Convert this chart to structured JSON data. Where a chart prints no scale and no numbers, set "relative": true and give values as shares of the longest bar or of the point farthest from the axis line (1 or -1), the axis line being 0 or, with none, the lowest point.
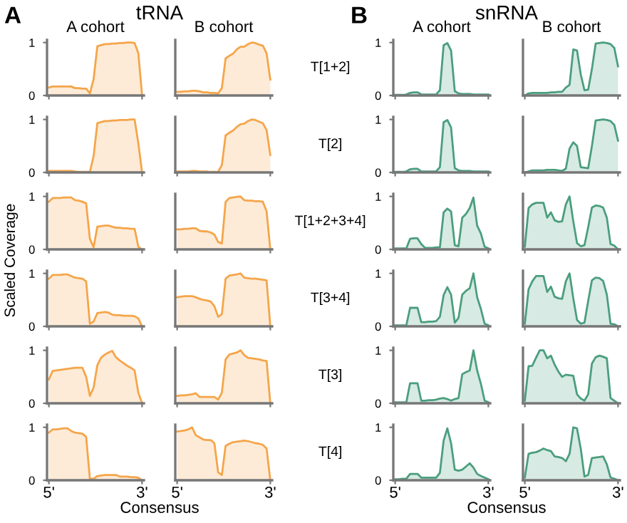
{
  "chart_data": [
    {
      "type": "area",
      "title": "A cohort",
      "annotations": [
        "A",
        "tRNA"
      ],
      "tick_labels": "y",
      "categories": [
        null,
        null,
        null,
        null,
        null,
        null,
        null,
        null,
        null,
        null,
        null,
        null,
        null,
        null,
        null,
        null,
        null,
        null,
        null,
        null,
        null,
        null,
        null,
        null,
        null,
        null
      ],
      "ylim": [
        0,
        1.05
      ],
      "yticks": [
        0,
        1
      ],
      "series": [
        {
          "color": "#f5a54a",
          "values": [
            0.15,
            0.17,
            0.17,
            0.17,
            0.17,
            0.17,
            0.17,
            0.14,
            0.14,
            0.13,
            0.13,
            0.04,
            0.31,
            0.93,
            0.95,
            0.97,
            0.97,
            0.98,
            0.98,
            0.99,
            0.99,
            1.0,
            1.0,
            0.99,
            0.8,
            0.0
          ]
        }
      ]
    },
    {
      "type": "area",
      "tick_labels": "y",
      "categories": [
        null,
        null,
        null,
        null,
        null,
        null,
        null,
        null,
        null,
        null,
        null,
        null,
        null,
        null,
        null,
        null,
        null,
        null,
        null,
        null,
        null,
        null,
        null,
        null,
        null,
        null
      ],
      "ylim": [
        0,
        1.05
      ],
      "yticks": [
        0,
        1
      ],
      "series": [
        {
          "color": "#f5a54a",
          "values": [
            0.03,
            0.03,
            0.03,
            0.03,
            0.03,
            0.03,
            0.03,
            0.02,
            0.01,
            0.01,
            0.01,
            0.01,
            0.31,
            0.93,
            0.95,
            0.97,
            0.97,
            0.98,
            0.98,
            0.99,
            0.99,
            0.99,
            1.0,
            1.0,
            0.55,
            0.0
          ]
        }
      ]
    },
    {
      "type": "area",
      "ylabel": "Scaled Coverage",
      "tick_labels": "y",
      "categories": [
        null,
        null,
        null,
        null,
        null,
        null,
        null,
        null,
        null,
        null,
        null,
        null,
        null,
        null,
        null,
        null,
        null,
        null,
        null,
        null,
        null,
        null,
        null,
        null,
        null,
        null
      ],
      "ylim": [
        0,
        1.05
      ],
      "yticks": [
        0,
        1
      ],
      "series": [
        {
          "color": "#f5a54a",
          "values": [
            0.9,
            0.97,
            0.97,
            0.97,
            0.98,
            0.98,
            0.98,
            0.93,
            0.92,
            0.9,
            0.87,
            0.2,
            0.04,
            0.43,
            0.44,
            0.45,
            0.45,
            0.43,
            0.41,
            0.41,
            0.4,
            0.4,
            0.39,
            0.39,
            0.05,
            0.0
          ]
        }
      ]
    },
    {
      "type": "area",
      "tick_labels": "y",
      "categories": [
        null,
        null,
        null,
        null,
        null,
        null,
        null,
        null,
        null,
        null,
        null,
        null,
        null,
        null,
        null,
        null,
        null,
        null,
        null,
        null,
        null,
        null,
        null,
        null,
        null,
        null
      ],
      "ylim": [
        0,
        1.05
      ],
      "yticks": [
        0,
        1
      ],
      "series": [
        {
          "color": "#f5a54a",
          "values": [
            0.9,
            0.97,
            0.97,
            0.97,
            0.98,
            0.98,
            0.95,
            0.92,
            0.91,
            0.9,
            0.85,
            0.05,
            0.09,
            0.25,
            0.26,
            0.27,
            0.26,
            0.22,
            0.21,
            0.21,
            0.2,
            0.2,
            0.2,
            0.19,
            0.15,
            0.0
          ]
        }
      ]
    },
    {
      "type": "area",
      "tick_labels": "y",
      "categories": [
        null,
        null,
        null,
        null,
        null,
        null,
        null,
        null,
        null,
        null,
        null,
        null,
        null,
        null,
        null,
        null,
        null,
        null,
        null,
        null,
        null,
        null,
        null,
        null,
        null,
        null
      ],
      "ylim": [
        0,
        1.05
      ],
      "yticks": [
        0,
        1
      ],
      "series": [
        {
          "color": "#f5a54a",
          "values": [
            0.45,
            0.61,
            0.62,
            0.63,
            0.64,
            0.65,
            0.66,
            0.67,
            0.67,
            0.67,
            0.5,
            0.14,
            0.3,
            0.72,
            0.86,
            0.92,
            0.96,
            0.99,
            0.87,
            0.81,
            0.76,
            0.71,
            0.67,
            0.62,
            0.2,
            0.0
          ]
        }
      ]
    },
    {
      "type": "area",
      "xlabel": "Consensus",
      "categories": [
        "5'",
        null,
        null,
        null,
        null,
        null,
        null,
        null,
        null,
        null,
        null,
        null,
        null,
        null,
        null,
        null,
        null,
        null,
        null,
        null,
        null,
        null,
        null,
        null,
        null,
        "3'"
      ],
      "ylim": [
        0,
        1.05
      ],
      "yticks": [
        0,
        1
      ],
      "series": [
        {
          "color": "#f5a54a",
          "values": [
            0.9,
            0.96,
            0.96,
            0.97,
            0.98,
            0.98,
            0.93,
            0.9,
            0.89,
            0.88,
            0.82,
            0.03,
            0.03,
            0.08,
            0.09,
            0.1,
            0.1,
            0.1,
            0.1,
            0.07,
            0.07,
            0.07,
            0.06,
            0.06,
            0.05,
            0.0
          ]
        }
      ]
    },
    {
      "type": "area",
      "title": "B cohort",
      "annotations": [
        "T[1+2]"
      ],
      "relative": true,
      "tick_labels": false,
      "categories": [
        null,
        null,
        null,
        null,
        null,
        null,
        null,
        null,
        null,
        null,
        null,
        null,
        null,
        null,
        null,
        null,
        null,
        null,
        null,
        null,
        null,
        null,
        null,
        null,
        null,
        null
      ],
      "series": [
        {
          "color": "#f5a54a",
          "values": [
            0.07,
            0.07,
            0.08,
            0.08,
            0.09,
            0.09,
            0.08,
            0.06,
            0.06,
            0.05,
            0.05,
            0.04,
            0.14,
            0.7,
            0.75,
            0.79,
            0.87,
            0.92,
            0.92,
            0.97,
            1.0,
            0.99,
            0.96,
            0.94,
            0.8,
            0.3
          ]
        }
      ]
    },
    {
      "type": "area",
      "annotations": [
        "T[2]"
      ],
      "relative": true,
      "tick_labels": false,
      "categories": [
        null,
        null,
        null,
        null,
        null,
        null,
        null,
        null,
        null,
        null,
        null,
        null,
        null,
        null,
        null,
        null,
        null,
        null,
        null,
        null,
        null,
        null,
        null,
        null,
        null,
        null
      ],
      "series": [
        {
          "color": "#f5a54a",
          "values": [
            0.02,
            0.02,
            0.02,
            0.02,
            0.03,
            0.03,
            0.02,
            0.02,
            0.02,
            0.01,
            0.01,
            0.01,
            0.14,
            0.7,
            0.75,
            0.79,
            0.86,
            0.91,
            0.92,
            0.97,
            1.0,
            0.99,
            0.96,
            0.93,
            0.8,
            0.33
          ]
        }
      ]
    },
    {
      "type": "area",
      "annotations": [
        "T[1+2+3+4]"
      ],
      "relative": true,
      "tick_labels": false,
      "categories": [
        null,
        null,
        null,
        null,
        null,
        null,
        null,
        null,
        null,
        null,
        null,
        null,
        null,
        null,
        null,
        null,
        null,
        null,
        null,
        null,
        null,
        null,
        null,
        null,
        null,
        null
      ],
      "series": [
        {
          "color": "#f5a54a",
          "values": [
            0.38,
            0.38,
            0.39,
            0.39,
            0.4,
            0.4,
            0.35,
            0.34,
            0.34,
            0.32,
            0.28,
            0.14,
            0.11,
            0.9,
            0.97,
            0.98,
            0.99,
            1.0,
            0.93,
            0.92,
            0.92,
            0.91,
            0.91,
            0.9,
            0.72,
            0.0
          ]
        }
      ]
    },
    {
      "type": "area",
      "annotations": [
        "T[3+4]"
      ],
      "relative": true,
      "tick_labels": false,
      "categories": [
        null,
        null,
        null,
        null,
        null,
        null,
        null,
        null,
        null,
        null,
        null,
        null,
        null,
        null,
        null,
        null,
        null,
        null,
        null,
        null,
        null,
        null,
        null,
        null,
        null,
        null
      ],
      "series": [
        {
          "color": "#f5a54a",
          "values": [
            0.55,
            0.56,
            0.57,
            0.57,
            0.57,
            0.55,
            0.52,
            0.5,
            0.49,
            0.47,
            0.38,
            0.18,
            0.23,
            0.9,
            0.96,
            0.97,
            0.98,
            1.0,
            0.92,
            0.91,
            0.9,
            0.9,
            0.89,
            0.88,
            0.87,
            0.0
          ]
        }
      ]
    },
    {
      "type": "area",
      "annotations": [
        "T[3]"
      ],
      "relative": true,
      "tick_labels": false,
      "categories": [
        null,
        null,
        null,
        null,
        null,
        null,
        null,
        null,
        null,
        null,
        null,
        null,
        null,
        null,
        null,
        null,
        null,
        null,
        null,
        null,
        null,
        null,
        null,
        null,
        null,
        null
      ],
      "series": [
        {
          "color": "#f5a54a",
          "values": [
            0.14,
            0.15,
            0.15,
            0.16,
            0.17,
            0.19,
            0.12,
            0.12,
            0.12,
            0.12,
            0.12,
            0.07,
            0.2,
            0.83,
            0.92,
            0.94,
            0.96,
            1.0,
            0.91,
            0.86,
            0.85,
            0.84,
            0.83,
            0.81,
            0.8,
            0.0
          ]
        }
      ]
    },
    {
      "type": "area",
      "annotations": [
        "T[4]"
      ],
      "relative": true,
      "tick_labels": "x",
      "categories": [
        "5'",
        null,
        null,
        null,
        null,
        null,
        null,
        null,
        null,
        null,
        null,
        null,
        null,
        null,
        null,
        null,
        null,
        null,
        null,
        null,
        null,
        null,
        null,
        null,
        null,
        "3'"
      ],
      "series": [
        {
          "color": "#f5a54a",
          "values": [
            0.92,
            0.93,
            0.94,
            0.96,
            1.0,
            0.85,
            0.81,
            0.77,
            0.76,
            0.76,
            0.7,
            0.15,
            0.1,
            0.65,
            0.69,
            0.72,
            0.73,
            0.74,
            0.75,
            0.74,
            0.72,
            0.7,
            0.69,
            0.67,
            0.6,
            0.0
          ]
        }
      ]
    },
    {
      "type": "area",
      "title": "A cohort",
      "annotations": [
        "B",
        "snRNA"
      ],
      "tick_labels": "y",
      "categories": [
        null,
        null,
        null,
        null,
        null,
        null,
        null,
        null,
        null,
        null,
        null,
        null,
        null,
        null,
        null,
        null,
        null,
        null,
        null,
        null,
        null,
        null,
        null,
        null,
        null,
        null
      ],
      "ylim": [
        0,
        1.05
      ],
      "yticks": [
        0,
        1
      ],
      "series": [
        {
          "color": "#4a9e7e",
          "values": [
            0.01,
            0.01,
            0.01,
            0.02,
            0.05,
            0.06,
            0.06,
            0.02,
            0.02,
            0.02,
            0.02,
            0.02,
            0.1,
            0.95,
            0.99,
            0.85,
            0.08,
            0.04,
            0.03,
            0.03,
            0.03,
            0.02,
            0.02,
            0.02,
            0.02,
            0.02
          ]
        }
      ]
    },
    {
      "type": "area",
      "tick_labels": "y",
      "categories": [
        null,
        null,
        null,
        null,
        null,
        null,
        null,
        null,
        null,
        null,
        null,
        null,
        null,
        null,
        null,
        null,
        null,
        null,
        null,
        null,
        null,
        null,
        null,
        null,
        null,
        null
      ],
      "ylim": [
        0,
        1.05
      ],
      "yticks": [
        0,
        1
      ],
      "series": [
        {
          "color": "#4a9e7e",
          "values": [
            0.01,
            0.01,
            0.01,
            0.02,
            0.06,
            0.07,
            0.07,
            0.02,
            0.02,
            0.02,
            0.02,
            0.02,
            0.1,
            0.95,
            0.99,
            0.85,
            0.08,
            0.04,
            0.03,
            0.03,
            0.03,
            0.02,
            0.02,
            0.02,
            0.02,
            0.02
          ]
        }
      ]
    },
    {
      "type": "area",
      "tick_labels": "y",
      "categories": [
        null,
        null,
        null,
        null,
        null,
        null,
        null,
        null,
        null,
        null,
        null,
        null,
        null,
        null,
        null,
        null,
        null,
        null,
        null,
        null,
        null,
        null,
        null,
        null,
        null,
        null
      ],
      "ylim": [
        0,
        1.05
      ],
      "yticks": [
        0,
        1
      ],
      "series": [
        {
          "color": "#4a9e7e",
          "values": [
            0.02,
            0.02,
            0.02,
            0.02,
            0.2,
            0.21,
            0.21,
            0.1,
            0.03,
            0.03,
            0.03,
            0.04,
            0.04,
            0.7,
            0.77,
            0.72,
            0.08,
            0.06,
            0.6,
            0.67,
            0.78,
            0.98,
            0.45,
            0.3,
            0.05,
            0.02
          ]
        }
      ]
    },
    {
      "type": "area",
      "tick_labels": "y",
      "categories": [
        null,
        null,
        null,
        null,
        null,
        null,
        null,
        null,
        null,
        null,
        null,
        null,
        null,
        null,
        null,
        null,
        null,
        null,
        null,
        null,
        null,
        null,
        null,
        null,
        null,
        null
      ],
      "ylim": [
        0,
        1.05
      ],
      "yticks": [
        0,
        1
      ],
      "series": [
        {
          "color": "#4a9e7e",
          "values": [
            0.02,
            0.02,
            0.02,
            0.02,
            0.35,
            0.35,
            0.35,
            0.08,
            0.08,
            0.09,
            0.09,
            0.1,
            0.18,
            0.59,
            0.74,
            0.6,
            0.07,
            0.16,
            0.6,
            0.67,
            0.72,
            1.0,
            0.55,
            0.33,
            0.05,
            0.02
          ]
        }
      ]
    },
    {
      "type": "area",
      "tick_labels": "y",
      "categories": [
        null,
        null,
        null,
        null,
        null,
        null,
        null,
        null,
        null,
        null,
        null,
        null,
        null,
        null,
        null,
        null,
        null,
        null,
        null,
        null,
        null,
        null,
        null,
        null,
        null,
        null
      ],
      "ylim": [
        0,
        1.05
      ],
      "yticks": [
        0,
        1
      ],
      "series": [
        {
          "color": "#4a9e7e",
          "values": [
            0.02,
            0.02,
            0.02,
            0.02,
            0.38,
            0.38,
            0.38,
            0.05,
            0.05,
            0.06,
            0.06,
            0.07,
            0.09,
            0.1,
            0.08,
            0.05,
            0.08,
            0.1,
            0.55,
            0.59,
            0.62,
            1.0,
            0.62,
            0.37,
            0.05,
            0.02
          ]
        }
      ]
    },
    {
      "type": "area",
      "xlabel": "Consensus",
      "categories": [
        "5'",
        null,
        null,
        null,
        null,
        null,
        null,
        null,
        null,
        null,
        null,
        null,
        null,
        null,
        null,
        null,
        null,
        null,
        null,
        null,
        null,
        null,
        null,
        null,
        null,
        "3'"
      ],
      "ylim": [
        0,
        1.05
      ],
      "yticks": [
        0,
        1
      ],
      "series": [
        {
          "color": "#4a9e7e",
          "values": [
            0.02,
            0.02,
            0.03,
            0.03,
            0.12,
            0.12,
            0.12,
            0.05,
            0.05,
            0.05,
            0.05,
            0.05,
            0.14,
            0.75,
            0.98,
            0.7,
            0.2,
            0.18,
            0.2,
            0.26,
            0.32,
            0.24,
            0.12,
            0.08,
            0.05,
            0.02
          ]
        }
      ]
    },
    {
      "type": "area",
      "title": "B cohort",
      "relative": true,
      "tick_labels": false,
      "categories": [
        null,
        null,
        null,
        null,
        null,
        null,
        null,
        null,
        null,
        null,
        null,
        null,
        null,
        null,
        null,
        null,
        null,
        null,
        null,
        null,
        null,
        null,
        null,
        null,
        null,
        null
      ],
      "series": [
        {
          "color": "#4a9e7e",
          "values": [
            0.0,
            0.04,
            0.05,
            0.05,
            0.05,
            0.05,
            0.05,
            0.06,
            0.06,
            0.07,
            0.07,
            0.15,
            0.2,
            0.87,
            0.85,
            0.4,
            0.1,
            0.11,
            0.5,
            0.98,
            0.99,
            1.0,
            0.99,
            0.97,
            0.9,
            0.55
          ]
        }
      ]
    },
    {
      "type": "area",
      "relative": true,
      "tick_labels": false,
      "categories": [
        null,
        null,
        null,
        null,
        null,
        null,
        null,
        null,
        null,
        null,
        null,
        null,
        null,
        null,
        null,
        null,
        null,
        null,
        null,
        null,
        null,
        null,
        null,
        null,
        null,
        null
      ],
      "series": [
        {
          "color": "#4a9e7e",
          "values": [
            0.0,
            0.02,
            0.04,
            0.04,
            0.04,
            0.04,
            0.05,
            0.05,
            0.05,
            0.04,
            0.03,
            0.07,
            0.45,
            0.57,
            0.5,
            0.1,
            0.09,
            0.08,
            0.5,
            0.98,
            0.99,
            1.0,
            0.99,
            0.97,
            0.9,
            0.6
          ]
        }
      ]
    },
    {
      "type": "area",
      "relative": true,
      "tick_labels": false,
      "categories": [
        null,
        null,
        null,
        null,
        null,
        null,
        null,
        null,
        null,
        null,
        null,
        null,
        null,
        null,
        null,
        null,
        null,
        null,
        null,
        null,
        null,
        null,
        null,
        null,
        null,
        null
      ],
      "series": [
        {
          "color": "#4a9e7e",
          "values": [
            0.05,
            0.78,
            0.85,
            0.88,
            0.88,
            0.88,
            0.6,
            0.7,
            0.55,
            0.52,
            0.53,
            0.85,
            1.0,
            0.53,
            0.12,
            0.06,
            0.08,
            0.42,
            0.79,
            0.83,
            0.82,
            0.79,
            0.6,
            0.1,
            0.07,
            0.0
          ]
        }
      ]
    },
    {
      "type": "area",
      "relative": true,
      "tick_labels": false,
      "categories": [
        null,
        null,
        null,
        null,
        null,
        null,
        null,
        null,
        null,
        null,
        null,
        null,
        null,
        null,
        null,
        null,
        null,
        null,
        null,
        null,
        null,
        null,
        null,
        null,
        null,
        null
      ],
      "series": [
        {
          "color": "#4a9e7e",
          "values": [
            0.05,
            0.7,
            0.85,
            0.95,
            0.95,
            0.95,
            0.65,
            0.75,
            0.56,
            0.53,
            0.52,
            0.85,
            1.0,
            0.53,
            0.12,
            0.05,
            0.07,
            0.48,
            0.87,
            0.92,
            0.91,
            0.86,
            0.6,
            0.05,
            0.04,
            0.0
          ]
        }
      ]
    },
    {
      "type": "area",
      "relative": true,
      "tick_labels": false,
      "categories": [
        null,
        null,
        null,
        null,
        null,
        null,
        null,
        null,
        null,
        null,
        null,
        null,
        null,
        null,
        null,
        null,
        null,
        null,
        null,
        null,
        null,
        null,
        null,
        null,
        null,
        null
      ],
      "series": [
        {
          "color": "#4a9e7e",
          "values": [
            0.05,
            0.7,
            0.71,
            0.86,
            1.0,
            1.0,
            0.85,
            0.9,
            0.73,
            0.6,
            0.5,
            0.54,
            0.53,
            0.52,
            0.17,
            0.09,
            0.05,
            0.17,
            0.75,
            0.87,
            0.9,
            0.88,
            0.85,
            0.1,
            0.05,
            0.0
          ]
        }
      ]
    },
    {
      "type": "area",
      "relative": true,
      "tick_labels": "x",
      "categories": [
        "5'",
        null,
        null,
        null,
        null,
        null,
        null,
        null,
        null,
        null,
        null,
        null,
        null,
        null,
        null,
        null,
        null,
        null,
        null,
        null,
        null,
        null,
        null,
        null,
        null,
        "3'"
      ],
      "series": [
        {
          "color": "#4a9e7e",
          "values": [
            0.05,
            0.5,
            0.52,
            0.53,
            0.56,
            0.6,
            0.57,
            0.55,
            0.45,
            0.44,
            0.42,
            0.36,
            0.5,
            1.0,
            0.98,
            0.6,
            0.07,
            0.1,
            0.42,
            0.43,
            0.44,
            0.45,
            0.3,
            0.05,
            0.03,
            0.0
          ]
        }
      ]
    }
  ]
}
